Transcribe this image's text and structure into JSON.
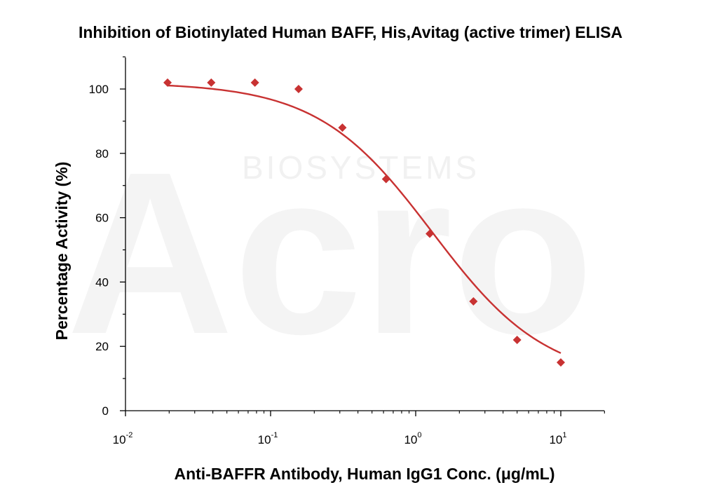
{
  "chart_data": {
    "type": "scatter",
    "title": "Inhibition of Biotinylated Human BAFF, His,Avitag (active trimer) ELISA",
    "xlabel": "Anti-BAFFR Antibody, Human IgG1 Conc. (μg/mL)",
    "ylabel": "Percentage Activity (%)",
    "x_scale": "log",
    "xlim": [
      0.01,
      20
    ],
    "ylim": [
      0,
      110
    ],
    "x_ticks": [
      {
        "base": "10",
        "exp": "-2",
        "value": 0.01
      },
      {
        "base": "10",
        "exp": "-1",
        "value": 0.1
      },
      {
        "base": "10",
        "exp": "0",
        "value": 1
      },
      {
        "base": "10",
        "exp": "1",
        "value": 10
      }
    ],
    "y_ticks": [
      0,
      20,
      40,
      60,
      80,
      100
    ],
    "grid": false,
    "series": [
      {
        "x": [
          0.0195,
          0.039,
          0.078,
          0.156,
          0.3125,
          0.625,
          1.25,
          2.5,
          5,
          10
        ],
        "y": [
          102,
          102,
          102,
          100,
          88,
          72,
          55,
          34,
          22,
          15
        ],
        "marker": "diamond",
        "color": "#c83232",
        "fit": {
          "type": "4PL",
          "top": 102,
          "bottom": 9,
          "ec50": 1.3,
          "hill": 1.1
        }
      }
    ],
    "watermark": {
      "logo": "Acro",
      "text": "BIOSYSTEMS"
    }
  }
}
